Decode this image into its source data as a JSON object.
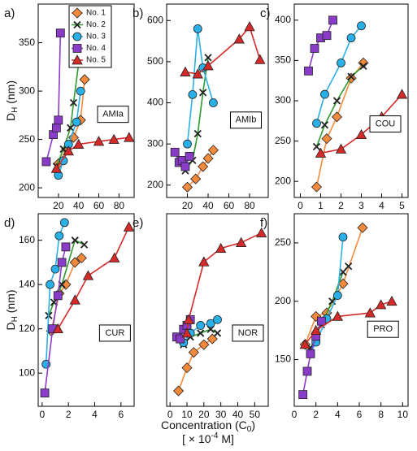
{
  "y_label": {
    "main": "D",
    "sub": "H",
    "rest": " (nm)"
  },
  "x_label": {
    "main": "Concentration (C",
    "sub": "0",
    "rest": ")"
  },
  "x_unit": {
    "main": "[ × 10",
    "sup": "-4",
    "rest": " M]"
  },
  "chart_data": [
    {
      "type": "line",
      "panel_label": "a)",
      "annotation": "AMIa",
      "legend": "upper right",
      "xlim": [
        0,
        95
      ],
      "xticks": [
        20,
        40,
        60,
        80
      ],
      "ylim": [
        190,
        390
      ],
      "yticks": [
        200,
        250,
        300,
        350
      ],
      "series": [
        {
          "name": "No. 1",
          "color": "#f58a3c",
          "marker": "diamond",
          "x": [
            20,
            28,
            35,
            42,
            46
          ],
          "values": [
            225,
            240,
            252,
            270,
            312
          ]
        },
        {
          "name": "No. 2",
          "color": "#2e9a2e",
          "marker": "cross",
          "x": [
            18,
            25,
            32,
            35,
            45
          ],
          "values": [
            222,
            240,
            262,
            288,
            368
          ]
        },
        {
          "name": "No. 3",
          "color": "#2ab0e8",
          "marker": "circle",
          "x": [
            20,
            25,
            30,
            38,
            42
          ],
          "values": [
            213,
            228,
            245,
            268,
            300
          ]
        },
        {
          "name": "No. 4",
          "color": "#8a3cc8",
          "marker": "square",
          "x": [
            8,
            15,
            18,
            20,
            22
          ],
          "values": [
            227,
            255,
            262,
            270,
            360
          ]
        },
        {
          "name": "No. 5",
          "color": "#d42a2a",
          "marker": "triangle",
          "x": [
            18,
            30,
            40,
            60,
            75,
            90
          ],
          "values": [
            220,
            238,
            245,
            248,
            250,
            252
          ]
        }
      ]
    },
    {
      "type": "line",
      "panel_label": "b)",
      "annotation": "AMIb",
      "xlim": [
        0,
        98
      ],
      "xticks": [
        20,
        40,
        60,
        80
      ],
      "ylim": [
        170,
        640
      ],
      "yticks": [
        200,
        300,
        400,
        500,
        600
      ],
      "series": [
        {
          "color": "#f58a3c",
          "marker": "diamond",
          "x": [
            20,
            28,
            35,
            40,
            45
          ],
          "values": [
            195,
            215,
            245,
            265,
            285
          ]
        },
        {
          "color": "#2e9a2e",
          "marker": "cross",
          "x": [
            18,
            25,
            30,
            35,
            40
          ],
          "values": [
            235,
            260,
            325,
            425,
            510
          ]
        },
        {
          "color": "#2ab0e8",
          "marker": "circle",
          "x": [
            20,
            25,
            30,
            35,
            45
          ],
          "values": [
            300,
            420,
            580,
            485,
            400
          ]
        },
        {
          "color": "#8a3cc8",
          "marker": "square",
          "x": [
            8,
            12,
            15,
            18,
            22
          ],
          "values": [
            280,
            255,
            260,
            245,
            270
          ]
        },
        {
          "color": "#d42a2a",
          "marker": "triangle",
          "x": [
            18,
            30,
            40,
            70,
            80,
            90
          ],
          "values": [
            475,
            470,
            490,
            555,
            585,
            505
          ]
        }
      ]
    },
    {
      "type": "line",
      "panel_label": "c)",
      "annotation": "COU",
      "xlim": [
        -0.3,
        5.3
      ],
      "xticks": [
        0,
        1,
        2,
        3,
        4,
        5
      ],
      "ylim": [
        180,
        420
      ],
      "yticks": [
        200,
        250,
        300,
        350,
        400
      ],
      "series": [
        {
          "color": "#f58a3c",
          "marker": "diamond",
          "x": [
            0.8,
            1.3,
            1.8,
            2.5,
            3.1
          ],
          "values": [
            193,
            253,
            280,
            328,
            347
          ]
        },
        {
          "color": "#2e9a2e",
          "marker": "cross",
          "x": [
            0.8,
            1.2,
            1.8,
            2.5,
            3.1
          ],
          "values": [
            243,
            270,
            300,
            330,
            343
          ]
        },
        {
          "color": "#2ab0e8",
          "marker": "circle",
          "x": [
            0.8,
            1.2,
            2,
            2.5,
            3
          ],
          "values": [
            272,
            308,
            347,
            378,
            393
          ]
        },
        {
          "color": "#8a3cc8",
          "marker": "square",
          "x": [
            0.4,
            0.7,
            1,
            1.3,
            1.6
          ],
          "values": [
            337,
            365,
            378,
            381,
            400
          ]
        },
        {
          "color": "#d42a2a",
          "marker": "triangle",
          "x": [
            1,
            2,
            3,
            4,
            5
          ],
          "values": [
            235,
            240,
            258,
            280,
            308
          ]
        }
      ]
    },
    {
      "type": "line",
      "panel_label": "d)",
      "annotation": "CUR",
      "xlim": [
        -0.3,
        7
      ],
      "xticks": [
        0,
        2,
        4,
        6
      ],
      "ylim": [
        85,
        172
      ],
      "yticks": [
        100,
        120,
        140,
        160
      ],
      "series": [
        {
          "color": "#f58a3c",
          "marker": "diamond",
          "x": [
            0.7,
            1.3,
            1.8,
            2.5,
            3
          ],
          "values": [
            119,
            136,
            140,
            150,
            152
          ]
        },
        {
          "color": "#2e9a2e",
          "marker": "cross",
          "x": [
            0.5,
            0.9,
            1.5,
            2.5,
            3.2
          ],
          "values": [
            126,
            132,
            140,
            160,
            158
          ]
        },
        {
          "color": "#2ab0e8",
          "marker": "circle",
          "x": [
            0.3,
            0.6,
            1,
            1.3,
            1.7
          ],
          "values": [
            104,
            140,
            147,
            162,
            168
          ]
        },
        {
          "color": "#8a3cc8",
          "marker": "square",
          "x": [
            0.2,
            0.8,
            1.2,
            1.5,
            1.8
          ],
          "values": [
            91,
            120,
            135,
            150,
            157
          ]
        },
        {
          "color": "#d42a2a",
          "marker": "triangle",
          "x": [
            1.2,
            2.5,
            3.5,
            5.5,
            6.6
          ],
          "values": [
            120,
            133,
            144,
            152,
            166
          ]
        }
      ]
    },
    {
      "type": "line",
      "panel_label": "e)",
      "annotation": "NOR",
      "xlim": [
        -2,
        58
      ],
      "xticks": [
        0,
        10,
        20,
        30,
        40,
        50
      ],
      "ylim": [
        0,
        100
      ],
      "series": [
        {
          "color": "#f58a3c",
          "marker": "diamond",
          "x": [
            5,
            10,
            14,
            20,
            25
          ],
          "values": [
            8,
            20,
            28,
            32,
            35
          ]
        },
        {
          "color": "#2e9a2e",
          "marker": "cross",
          "x": [
            8,
            12,
            18,
            24,
            28
          ],
          "values": [
            32,
            36,
            38,
            40,
            38
          ]
        },
        {
          "color": "#2ab0e8",
          "marker": "circle",
          "x": [
            8,
            12,
            18,
            24,
            28
          ],
          "values": [
            33,
            38,
            42,
            43,
            45
          ]
        },
        {
          "color": "#8a3cc8",
          "marker": "square",
          "x": [
            4,
            6,
            8,
            10,
            12
          ],
          "values": [
            36,
            35,
            40,
            42,
            45
          ]
        },
        {
          "color": "#d42a2a",
          "marker": "triangle",
          "x": [
            10,
            11,
            20,
            30,
            42,
            54
          ],
          "values": [
            38,
            45,
            75,
            82,
            85,
            90
          ]
        }
      ]
    },
    {
      "type": "line",
      "panel_label": "f)",
      "annotation": "PRO",
      "xlim": [
        0,
        10.5
      ],
      "xticks": [
        0,
        2,
        4,
        6,
        8,
        10
      ],
      "ylim": [
        110,
        275
      ],
      "yticks": [
        150,
        200,
        250
      ],
      "series": [
        {
          "color": "#f58a3c",
          "marker": "diamond",
          "x": [
            1,
            2,
            3,
            4.5,
            6.3
          ],
          "values": [
            163,
            187,
            190,
            215,
            263
          ]
        },
        {
          "color": "#2e9a2e",
          "marker": "cross",
          "x": [
            1.5,
            2.5,
            3.5,
            4.5,
            5
          ],
          "values": [
            160,
            180,
            200,
            225,
            230
          ]
        },
        {
          "color": "#2ab0e8",
          "marker": "circle",
          "x": [
            1.5,
            2,
            3,
            4,
            4.5
          ],
          "values": [
            155,
            165,
            185,
            205,
            255
          ]
        },
        {
          "color": "#8a3cc8",
          "marker": "square",
          "x": [
            0.8,
            1.2,
            1.5,
            2,
            2.5
          ],
          "values": [
            120,
            140,
            155,
            170,
            183
          ]
        },
        {
          "color": "#d42a2a",
          "marker": "triangle",
          "x": [
            1,
            2,
            4,
            7,
            8,
            9
          ],
          "values": [
            163,
            175,
            187,
            190,
            197,
            200
          ]
        }
      ]
    }
  ]
}
